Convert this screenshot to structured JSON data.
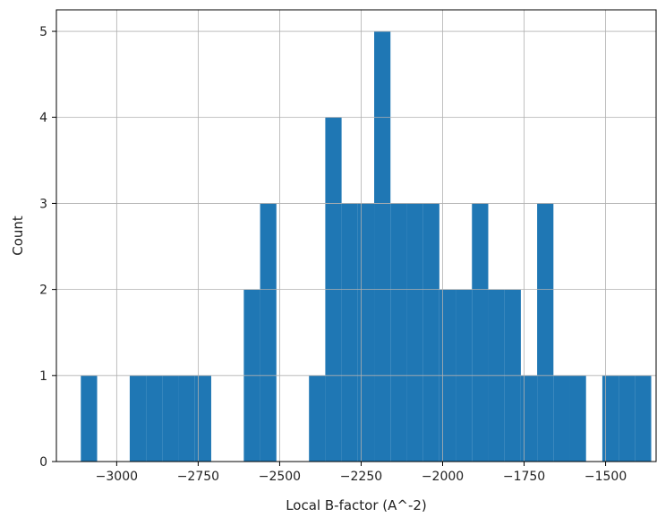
{
  "chart_data": {
    "type": "bar",
    "title": "",
    "xlabel": "Local B-factor (A^-2)",
    "ylabel": "Count",
    "xlim": [
      -3185,
      -1345
    ],
    "ylim": [
      0,
      5.25
    ],
    "grid": true,
    "bar_color": "#1f77b4",
    "bins": [
      {
        "x0": -3110,
        "x1": -3060,
        "count": 1
      },
      {
        "x0": -2960,
        "x1": -2910,
        "count": 1
      },
      {
        "x0": -2910,
        "x1": -2860,
        "count": 1
      },
      {
        "x0": -2860,
        "x1": -2810,
        "count": 1
      },
      {
        "x0": -2810,
        "x1": -2760,
        "count": 1
      },
      {
        "x0": -2760,
        "x1": -2710,
        "count": 1
      },
      {
        "x0": -2610,
        "x1": -2560,
        "count": 2
      },
      {
        "x0": -2560,
        "x1": -2510,
        "count": 3
      },
      {
        "x0": -2410,
        "x1": -2360,
        "count": 1
      },
      {
        "x0": -2360,
        "x1": -2310,
        "count": 4
      },
      {
        "x0": -2310,
        "x1": -2260,
        "count": 3
      },
      {
        "x0": -2260,
        "x1": -2210,
        "count": 3
      },
      {
        "x0": -2210,
        "x1": -2160,
        "count": 5
      },
      {
        "x0": -2160,
        "x1": -2110,
        "count": 3
      },
      {
        "x0": -2110,
        "x1": -2060,
        "count": 3
      },
      {
        "x0": -2060,
        "x1": -2010,
        "count": 3
      },
      {
        "x0": -2010,
        "x1": -1960,
        "count": 2
      },
      {
        "x0": -1960,
        "x1": -1910,
        "count": 2
      },
      {
        "x0": -1910,
        "x1": -1860,
        "count": 3
      },
      {
        "x0": -1860,
        "x1": -1810,
        "count": 2
      },
      {
        "x0": -1810,
        "x1": -1760,
        "count": 2
      },
      {
        "x0": -1760,
        "x1": -1710,
        "count": 1
      },
      {
        "x0": -1710,
        "x1": -1660,
        "count": 3
      },
      {
        "x0": -1660,
        "x1": -1610,
        "count": 1
      },
      {
        "x0": -1610,
        "x1": -1560,
        "count": 1
      },
      {
        "x0": -1510,
        "x1": -1460,
        "count": 1
      },
      {
        "x0": -1460,
        "x1": -1410,
        "count": 1
      },
      {
        "x0": -1410,
        "x1": -1360,
        "count": 1
      }
    ],
    "xticks": [
      {
        "value": -3000,
        "label": "−3000"
      },
      {
        "value": -2750,
        "label": "−2750"
      },
      {
        "value": -2500,
        "label": "−2500"
      },
      {
        "value": -2250,
        "label": "−2250"
      },
      {
        "value": -2000,
        "label": "−2000"
      },
      {
        "value": -1750,
        "label": "−1750"
      },
      {
        "value": -1500,
        "label": "−1500"
      }
    ],
    "yticks": [
      {
        "value": 0,
        "label": "0"
      },
      {
        "value": 1,
        "label": "1"
      },
      {
        "value": 2,
        "label": "2"
      },
      {
        "value": 3,
        "label": "3"
      },
      {
        "value": 4,
        "label": "4"
      },
      {
        "value": 5,
        "label": "5"
      }
    ]
  }
}
